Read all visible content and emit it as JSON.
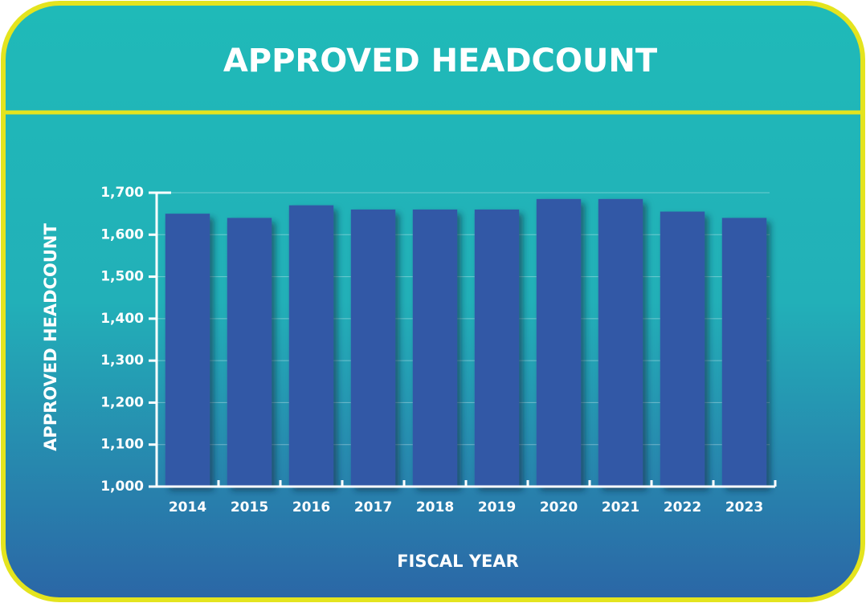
{
  "chart_data": {
    "type": "bar",
    "title": "APPROVED HEADCOUNT",
    "x_label": "FISCAL YEAR",
    "y_label": "APPROVED HEADCOUNT",
    "categories": [
      "2014",
      "2015",
      "2016",
      "2017",
      "2018",
      "2019",
      "2020",
      "2021",
      "2022",
      "2023"
    ],
    "values": [
      1650,
      1640,
      1670,
      1660,
      1660,
      1660,
      1685,
      1685,
      1655,
      1640
    ],
    "color": "#3358a6",
    "ylim": [
      1000,
      1700
    ],
    "yticks": [
      {
        "value": 1000,
        "label": "1,000"
      },
      {
        "value": 1100,
        "label": "1,100"
      },
      {
        "value": 1200,
        "label": "1,200"
      },
      {
        "value": 1300,
        "label": "1,300"
      },
      {
        "value": 1400,
        "label": "1,400"
      },
      {
        "value": 1500,
        "label": "1,500"
      },
      {
        "value": 1600,
        "label": "1,600"
      },
      {
        "value": 1700,
        "label": "1,700"
      }
    ],
    "grid": true
  }
}
